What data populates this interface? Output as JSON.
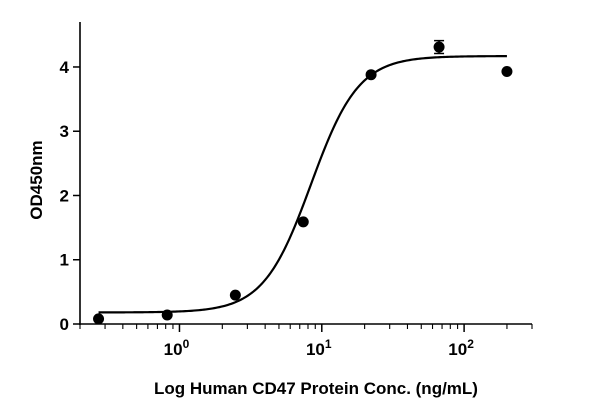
{
  "chart_data": {
    "type": "scatter",
    "xlabel": "Log Human CD47 Protein Conc. (ng/mL)",
    "ylabel": "OD450nm",
    "xscale": "log",
    "xlim": [
      0.2,
      300
    ],
    "ylim": [
      0,
      4.7
    ],
    "x_ticks": [
      {
        "value": 1,
        "base": "10",
        "exp": "0"
      },
      {
        "value": 10,
        "base": "10",
        "exp": "1"
      },
      {
        "value": 100,
        "base": "10",
        "exp": "2"
      }
    ],
    "y_ticks": [
      0,
      1,
      2,
      3,
      4
    ],
    "grid": false,
    "legend": "none",
    "series": [
      {
        "points": [
          {
            "x": 0.27,
            "y": 0.08
          },
          {
            "x": 0.82,
            "y": 0.14
          },
          {
            "x": 2.47,
            "y": 0.45
          },
          {
            "x": 7.41,
            "y": 1.59
          },
          {
            "x": 22.2,
            "y": 3.88
          },
          {
            "x": 66.7,
            "y": 4.31,
            "err": 0.1
          },
          {
            "x": 200,
            "y": 3.93
          }
        ]
      }
    ],
    "fit": {
      "model": "4PL",
      "bottom": 0.18,
      "top": 4.17,
      "ec50": 8.4,
      "hill": 2.6,
      "x_range": [
        0.27,
        200
      ]
    },
    "colors": {
      "marks": "#000000",
      "axis": "#000000",
      "background": "#ffffff"
    }
  }
}
